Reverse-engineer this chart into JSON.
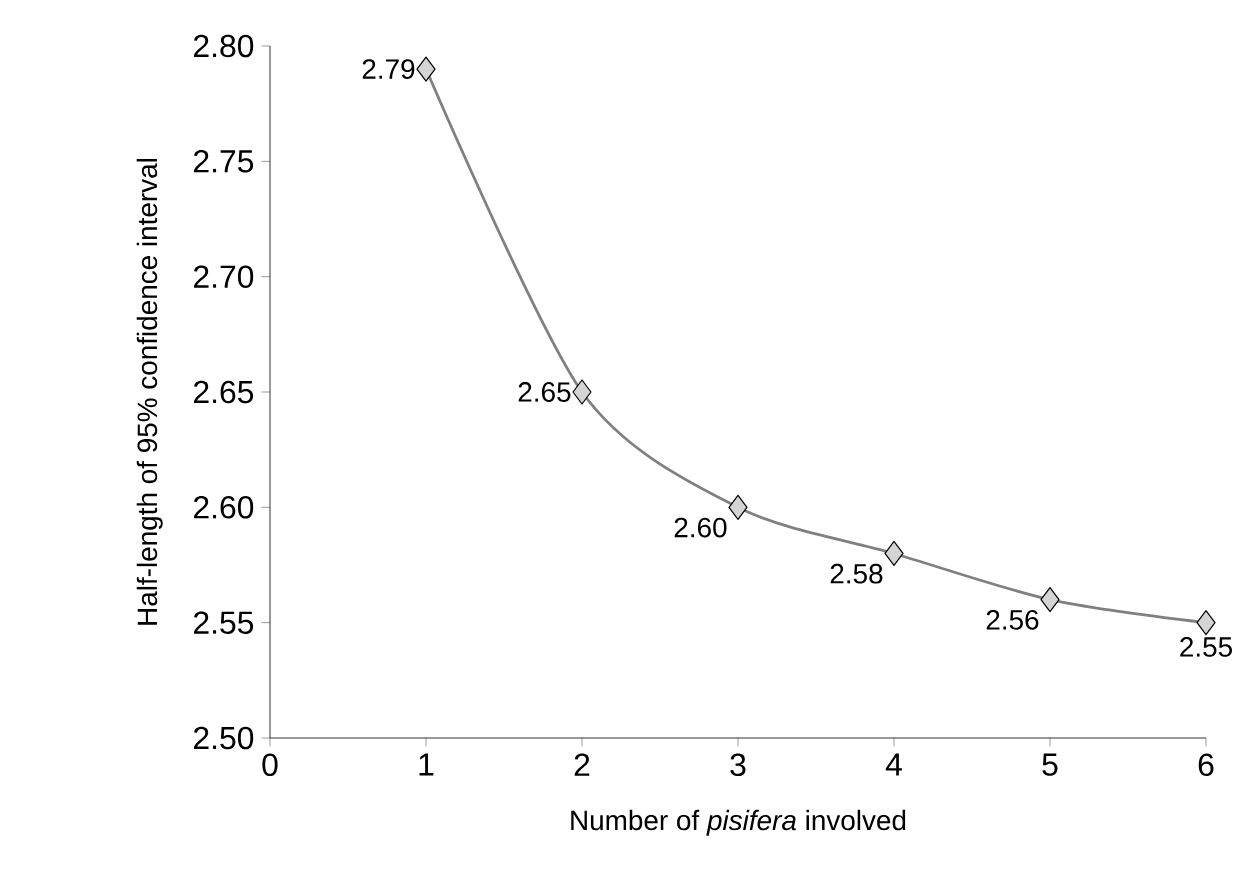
{
  "chart_data": {
    "type": "line",
    "xlabel": "Number of *pisifera* involved",
    "ylabel": "Half-length of 95% confidence interval",
    "x": [
      1,
      2,
      3,
      4,
      5,
      6
    ],
    "series": [
      {
        "color": "#808080",
        "values": [
          2.79,
          2.65,
          2.6,
          2.58,
          2.56,
          2.55
        ],
        "value_labels": [
          "2.79",
          "2.65",
          "2.60",
          "2.58",
          "2.56",
          "2.55"
        ]
      }
    ],
    "xlim": [
      0,
      6
    ],
    "xticks": [
      0,
      1,
      2,
      3,
      4,
      5,
      6
    ],
    "ylim": [
      2.5,
      2.8
    ],
    "yticks": [
      {
        "value": 2.5,
        "label": "2.50"
      },
      {
        "value": 2.55,
        "label": "2.55"
      },
      {
        "value": 2.6,
        "label": "2.60"
      },
      {
        "value": 2.65,
        "label": "2.65"
      },
      {
        "value": 2.7,
        "label": "2.70"
      },
      {
        "value": 2.75,
        "label": "2.75"
      },
      {
        "value": 2.8,
        "label": "2.80"
      }
    ],
    "grid": false,
    "marker": "diamond",
    "line_style": "solid"
  }
}
